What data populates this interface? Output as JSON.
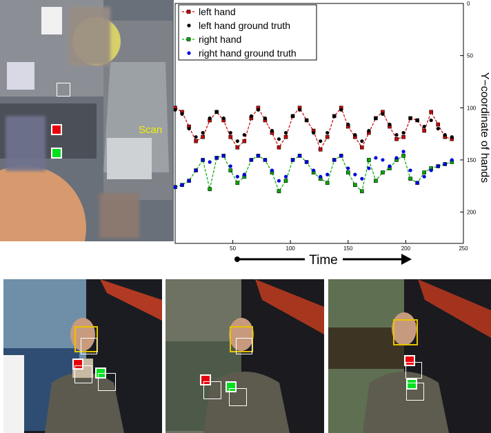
{
  "store_panel": {
    "scan_label": "Scan"
  },
  "chart_data": {
    "type": "line",
    "title": "",
    "xlabel": "Time",
    "ylabel": "Y−coordinate of hands",
    "xlim": [
      0,
      250
    ],
    "ylim": [
      0,
      230
    ],
    "y_inverted": true,
    "xticks": [
      50,
      100,
      150,
      200,
      250
    ],
    "yticks": [
      0,
      50,
      100,
      150,
      200
    ],
    "legend_position": "top-left",
    "series": [
      {
        "name": "left hand",
        "color": "#cc0000",
        "style": "dashed-square",
        "x": [
          0,
          6,
          12,
          18,
          24,
          30,
          36,
          42,
          48,
          54,
          60,
          66,
          72,
          78,
          84,
          90,
          96,
          102,
          108,
          114,
          120,
          126,
          132,
          138,
          144,
          150,
          156,
          162,
          168,
          174,
          180,
          186,
          192,
          198,
          204,
          210,
          216,
          222,
          228,
          234,
          240
        ],
        "y": [
          100,
          104,
          118,
          132,
          128,
          112,
          104,
          112,
          128,
          138,
          132,
          110,
          100,
          112,
          124,
          138,
          128,
          108,
          100,
          112,
          122,
          140,
          128,
          108,
          100,
          118,
          128,
          138,
          124,
          110,
          104,
          118,
          130,
          128,
          110,
          112,
          122,
          104,
          116,
          128,
          130
        ]
      },
      {
        "name": "left hand ground truth",
        "color": "#000000",
        "style": "dots",
        "x": [
          0,
          6,
          12,
          18,
          24,
          30,
          36,
          42,
          48,
          54,
          60,
          66,
          72,
          78,
          84,
          90,
          96,
          102,
          108,
          114,
          120,
          126,
          132,
          138,
          144,
          150,
          156,
          162,
          168,
          174,
          180,
          186,
          192,
          198,
          204,
          210,
          216,
          222,
          228,
          234,
          240
        ],
        "y": [
          102,
          106,
          120,
          128,
          124,
          110,
          104,
          110,
          124,
          132,
          126,
          108,
          102,
          110,
          122,
          130,
          124,
          108,
          102,
          112,
          124,
          132,
          124,
          108,
          102,
          116,
          126,
          132,
          122,
          110,
          106,
          116,
          126,
          124,
          110,
          112,
          118,
          112,
          120,
          126,
          128
        ]
      },
      {
        "name": "right hand",
        "color": "#00aa00",
        "style": "dashed-square",
        "x": [
          0,
          6,
          12,
          18,
          24,
          30,
          36,
          42,
          48,
          54,
          60,
          66,
          72,
          78,
          84,
          90,
          96,
          102,
          108,
          114,
          120,
          126,
          132,
          138,
          144,
          150,
          156,
          162,
          168,
          174,
          180,
          186,
          192,
          198,
          204,
          210,
          216,
          222,
          228,
          234,
          240
        ],
        "y": [
          176,
          174,
          170,
          160,
          150,
          178,
          148,
          146,
          160,
          172,
          166,
          150,
          146,
          150,
          162,
          180,
          170,
          150,
          146,
          152,
          162,
          168,
          172,
          150,
          146,
          162,
          174,
          180,
          150,
          170,
          162,
          158,
          150,
          146,
          168,
          172,
          162,
          158,
          156,
          154,
          152
        ]
      },
      {
        "name": "right hand ground truth",
        "color": "#0000dd",
        "style": "dots",
        "x": [
          0,
          6,
          12,
          18,
          24,
          30,
          36,
          42,
          48,
          54,
          60,
          66,
          72,
          78,
          84,
          90,
          96,
          102,
          108,
          114,
          120,
          126,
          132,
          138,
          144,
          150,
          156,
          162,
          168,
          174,
          180,
          186,
          192,
          198,
          204,
          210,
          216,
          222,
          228,
          234,
          240
        ],
        "y": [
          176,
          174,
          170,
          160,
          150,
          152,
          148,
          146,
          156,
          166,
          164,
          150,
          146,
          150,
          160,
          170,
          166,
          150,
          146,
          152,
          160,
          166,
          164,
          150,
          146,
          158,
          164,
          168,
          158,
          148,
          150,
          156,
          148,
          142,
          160,
          172,
          166,
          160,
          156,
          154,
          150
        ]
      }
    ]
  }
}
